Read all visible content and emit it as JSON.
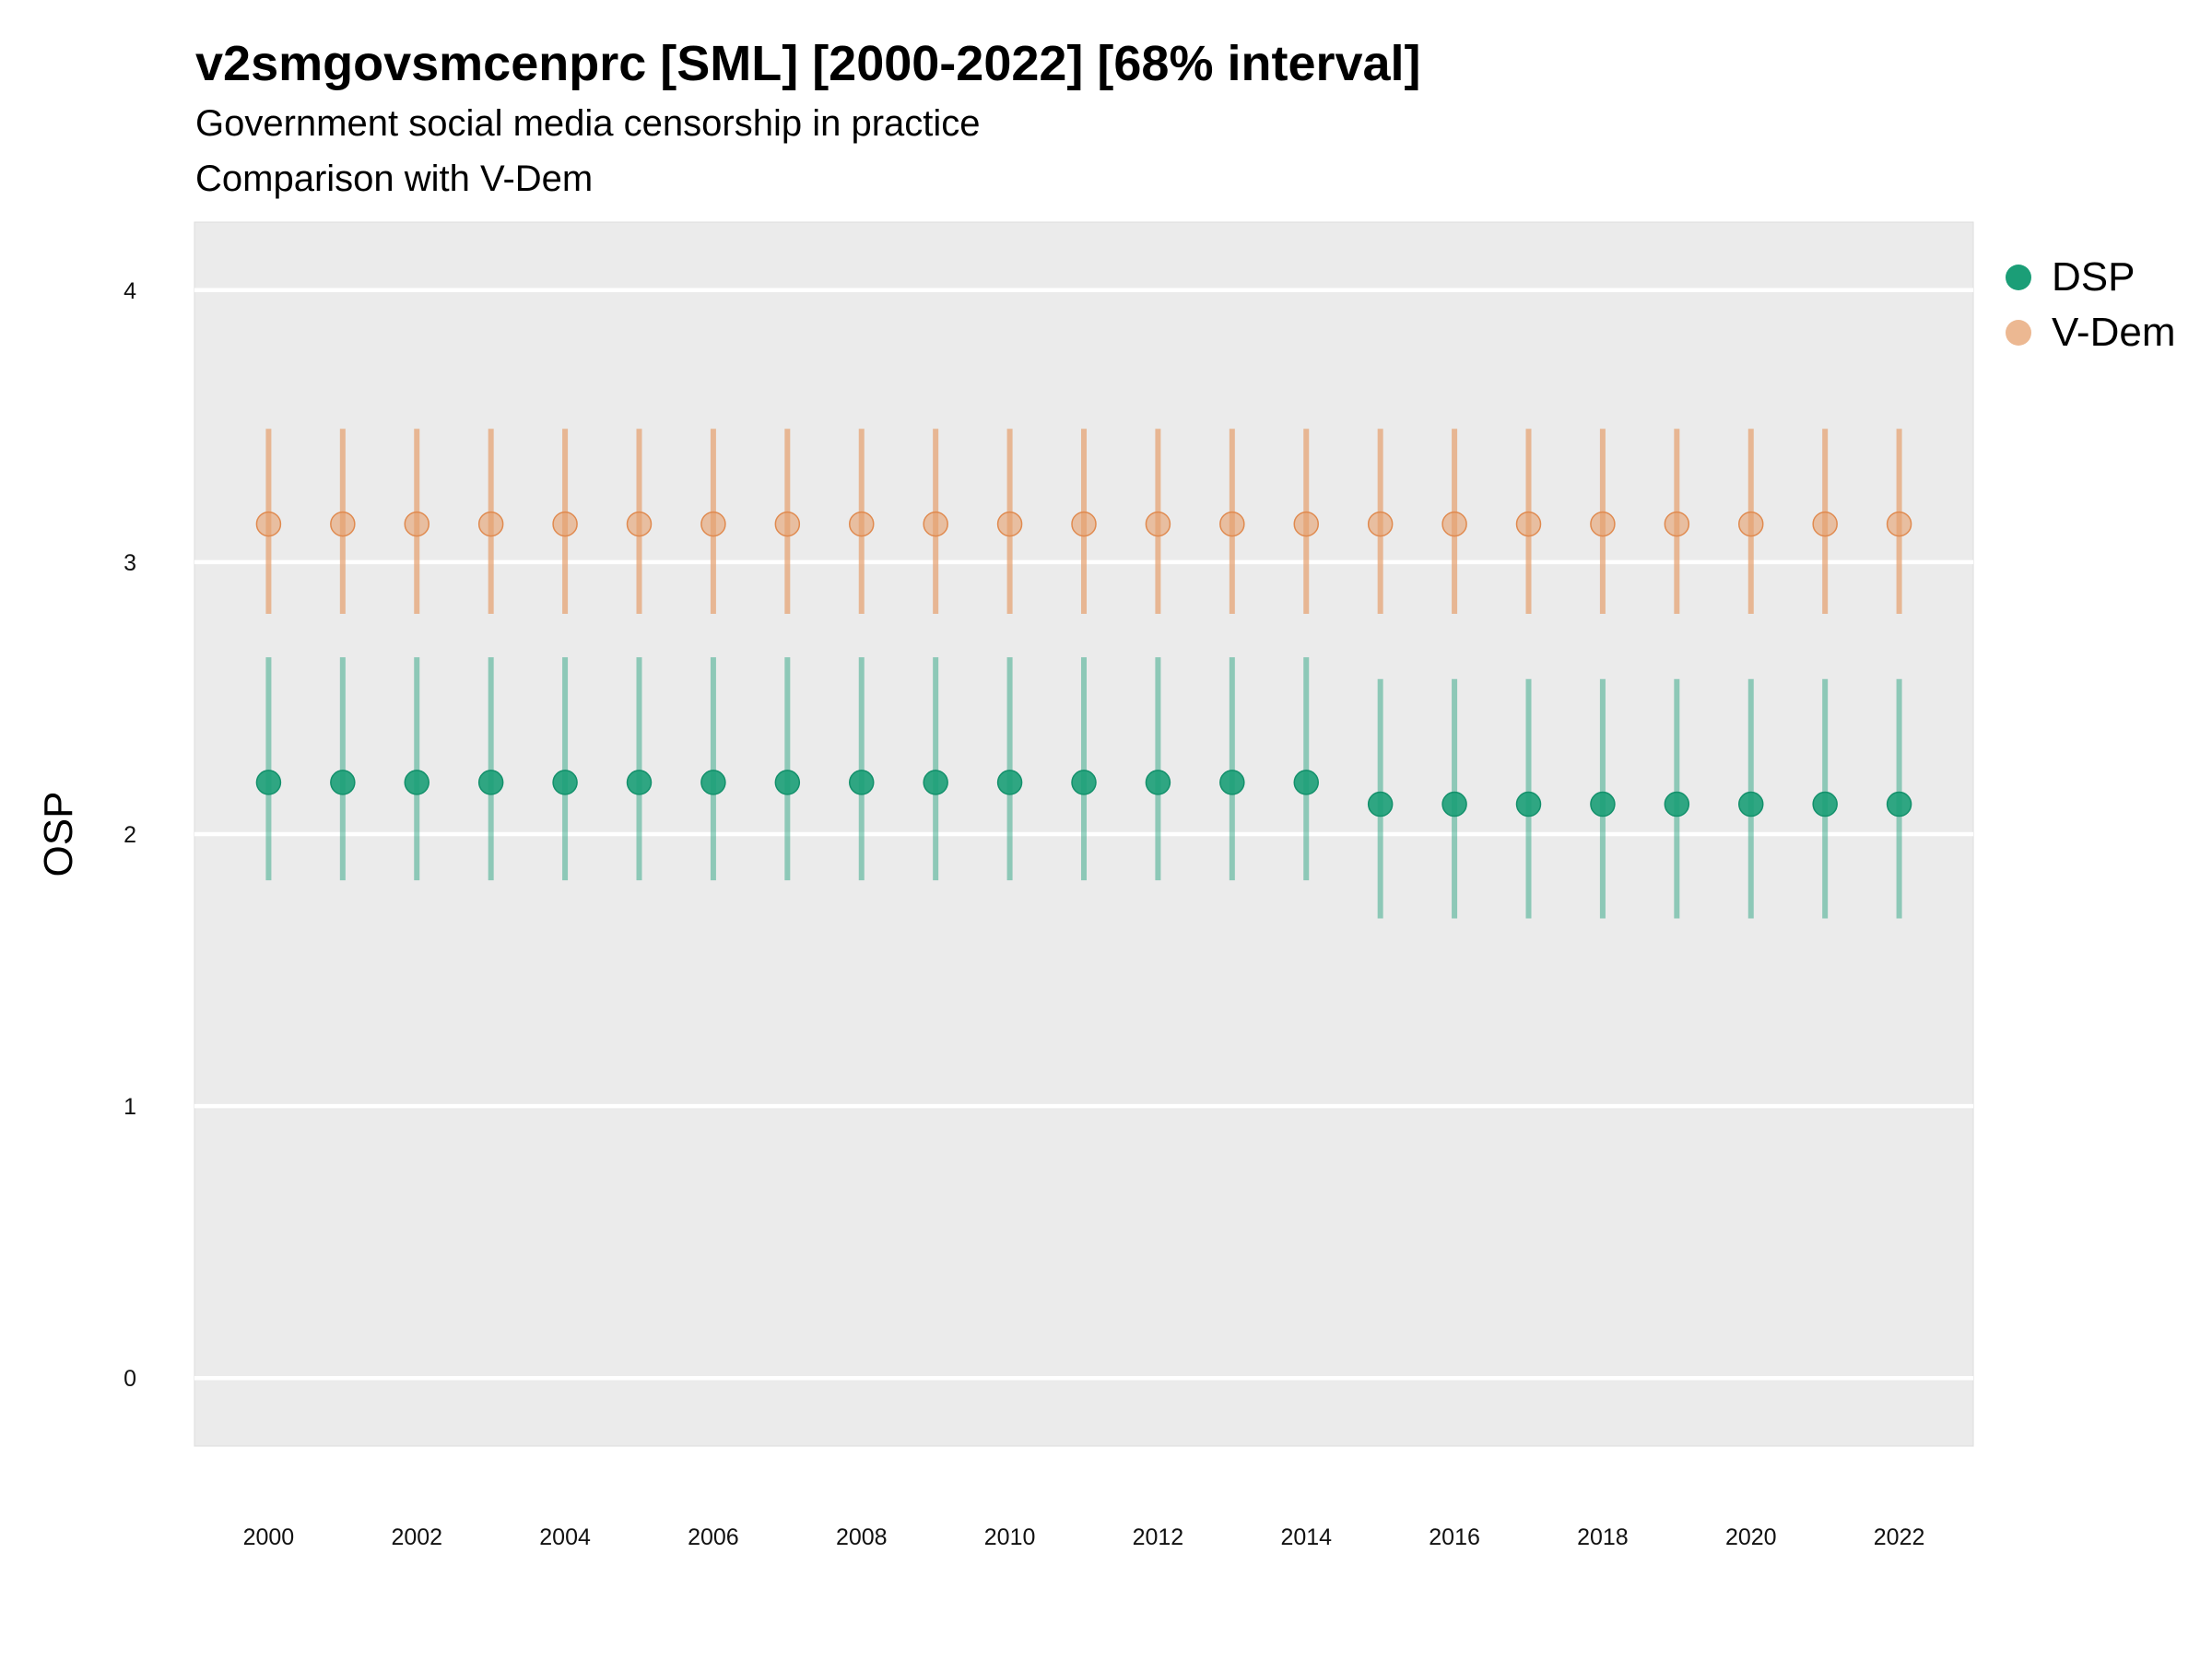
{
  "title": "v2smgovsmcenprc [SML] [2000-2022] [68% interval]",
  "subtitle": "Government social media censorship in practice",
  "caption": "Comparison with V-Dem",
  "colors": {
    "panel": "#ebebeb",
    "grid": "#ffffff",
    "dsp": "#1b9e77",
    "vdem": "#e6a06e"
  },
  "legend": [
    {
      "name": "DSP",
      "color": "#1b9e77"
    },
    {
      "name": "V-Dem",
      "color": "#e6a06e"
    }
  ],
  "chart_data": {
    "type": "scatter",
    "title": "v2smgovsmcenprc [SML] [2000-2022] [68% interval]",
    "xlabel": "",
    "ylabel": "OSP",
    "ylim": [
      -0.25,
      4.25
    ],
    "xlim": [
      1999,
      2023
    ],
    "yticks": [
      0,
      1,
      2,
      3,
      4
    ],
    "xticks": [
      2000,
      2002,
      2004,
      2006,
      2008,
      2010,
      2012,
      2014,
      2016,
      2018,
      2020,
      2022
    ],
    "grid": true,
    "legend_position": "right",
    "x": [
      2000,
      2001,
      2002,
      2003,
      2004,
      2005,
      2006,
      2007,
      2008,
      2009,
      2010,
      2011,
      2012,
      2013,
      2014,
      2015,
      2016,
      2017,
      2018,
      2019,
      2020,
      2021,
      2022
    ],
    "series": [
      {
        "name": "DSP",
        "color": "#1b9e77",
        "values": [
          2.19,
          2.19,
          2.19,
          2.19,
          2.19,
          2.19,
          2.19,
          2.19,
          2.19,
          2.19,
          2.19,
          2.19,
          2.19,
          2.19,
          2.19,
          2.11,
          2.11,
          2.11,
          2.11,
          2.11,
          2.11,
          2.11,
          2.11
        ],
        "lower": [
          1.83,
          1.83,
          1.83,
          1.83,
          1.83,
          1.83,
          1.83,
          1.83,
          1.83,
          1.83,
          1.83,
          1.83,
          1.83,
          1.83,
          1.83,
          1.69,
          1.69,
          1.69,
          1.69,
          1.69,
          1.69,
          1.69,
          1.69
        ],
        "upper": [
          2.65,
          2.65,
          2.65,
          2.65,
          2.65,
          2.65,
          2.65,
          2.65,
          2.65,
          2.65,
          2.65,
          2.65,
          2.65,
          2.65,
          2.65,
          2.57,
          2.57,
          2.57,
          2.57,
          2.57,
          2.57,
          2.57,
          2.57
        ]
      },
      {
        "name": "V-Dem",
        "color": "#e6a06e",
        "values": [
          3.14,
          3.14,
          3.14,
          3.14,
          3.14,
          3.14,
          3.14,
          3.14,
          3.14,
          3.14,
          3.14,
          3.14,
          3.14,
          3.14,
          3.14,
          3.14,
          3.14,
          3.14,
          3.14,
          3.14,
          3.14,
          3.14,
          3.14
        ],
        "lower": [
          2.81,
          2.81,
          2.81,
          2.81,
          2.81,
          2.81,
          2.81,
          2.81,
          2.81,
          2.81,
          2.81,
          2.81,
          2.81,
          2.81,
          2.81,
          2.81,
          2.81,
          2.81,
          2.81,
          2.81,
          2.81,
          2.81,
          2.81
        ],
        "upper": [
          3.49,
          3.49,
          3.49,
          3.49,
          3.49,
          3.49,
          3.49,
          3.49,
          3.49,
          3.49,
          3.49,
          3.49,
          3.49,
          3.49,
          3.49,
          3.49,
          3.49,
          3.49,
          3.49,
          3.49,
          3.49,
          3.49,
          3.49
        ]
      }
    ]
  }
}
